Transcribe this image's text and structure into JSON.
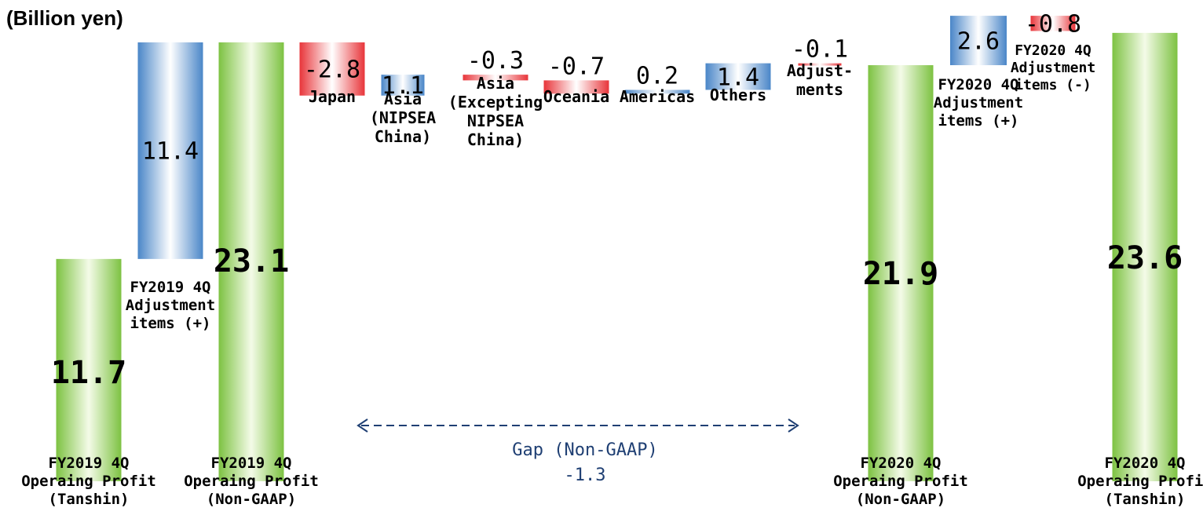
{
  "chart_data": {
    "type": "waterfall",
    "unit_label": "(Billion yen)",
    "ylim": [
      0,
      24
    ],
    "steps": [
      {
        "label": [
          "FY2019 4Q",
          "Operaing Profit",
          "(Tanshin)"
        ],
        "value": 11.7,
        "value_label": "11.7",
        "kind": "total"
      },
      {
        "label": [
          "FY2019 4Q",
          "Adjustment",
          "items (+)"
        ],
        "value": 11.4,
        "value_label": "11.4",
        "kind": "change"
      },
      {
        "label": [
          "FY2019 4Q",
          "Operaing Profit",
          "(Non-GAAP)"
        ],
        "value": 23.1,
        "value_label": "23.1",
        "kind": "total"
      },
      {
        "label": [
          "Japan"
        ],
        "value": -2.8,
        "value_label": "-2.8",
        "kind": "change"
      },
      {
        "label": [
          "Asia",
          "(NIPSEA",
          "China)"
        ],
        "value": 1.1,
        "value_label": "1.1",
        "kind": "change"
      },
      {
        "label": [
          "Asia",
          "(Excepting",
          "NIPSEA",
          "China)"
        ],
        "value": -0.3,
        "value_label": "-0.3",
        "kind": "change"
      },
      {
        "label": [
          "Oceania"
        ],
        "value": -0.7,
        "value_label": "-0.7",
        "kind": "change"
      },
      {
        "label": [
          "Americas"
        ],
        "value": 0.2,
        "value_label": "0.2",
        "kind": "change"
      },
      {
        "label": [
          "Others"
        ],
        "value": 1.4,
        "value_label": "1.4",
        "kind": "change"
      },
      {
        "label": [
          "Adjust-",
          "ments"
        ],
        "value": -0.1,
        "value_label": "-0.1",
        "kind": "change"
      },
      {
        "label": [
          "FY2020 4Q",
          "Operaing Profit",
          "(Non-GAAP)"
        ],
        "value": 21.9,
        "value_label": "21.9",
        "kind": "total"
      },
      {
        "label": [
          "FY2020 4Q",
          "Adjustment",
          "items (+)"
        ],
        "value": 2.6,
        "value_label": "2.6",
        "kind": "change"
      },
      {
        "label": [
          "FY2020 4Q",
          "Adjustment",
          "items (-)"
        ],
        "value": -0.8,
        "value_label": "-0.8",
        "kind": "change"
      },
      {
        "label": [
          "FY2020 4Q",
          "Operaing Profit",
          "(Tanshin)"
        ],
        "value": 23.6,
        "value_label": "23.6",
        "kind": "total"
      }
    ],
    "gap_annotation": {
      "text": "Gap (Non-GAAP)",
      "value": "-1.3"
    },
    "colors": {
      "total": "#7dc242",
      "positive": "#4a86c8",
      "negative": "#e8353a",
      "gap_arrow": "#1f3f73"
    }
  }
}
